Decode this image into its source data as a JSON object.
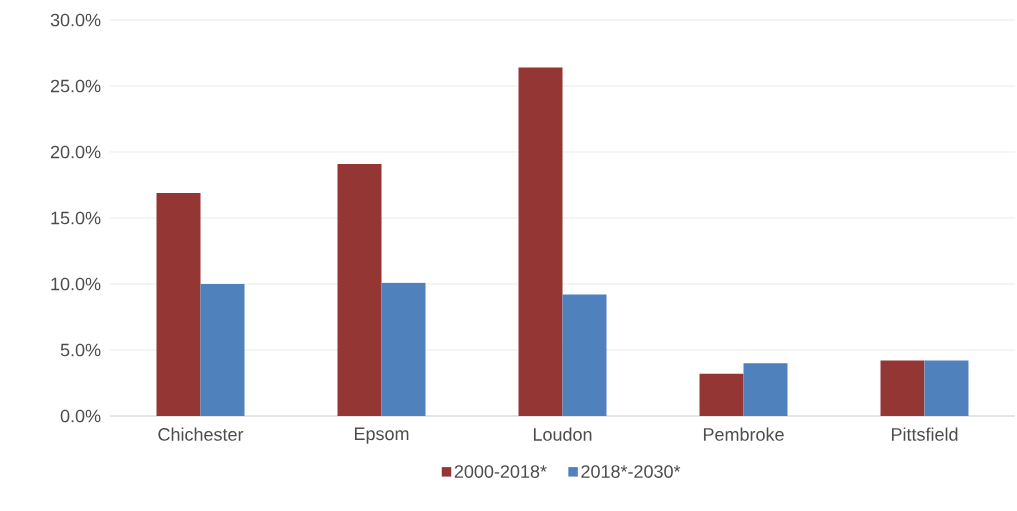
{
  "chart_data": {
    "type": "bar",
    "categories": [
      "Chichester",
      "Epsom",
      "Loudon",
      "Pembroke",
      "Pittsfield"
    ],
    "series": [
      {
        "name": "2000-2018*",
        "color": "#943634",
        "values": [
          16.9,
          19.1,
          26.4,
          3.2,
          4.2
        ]
      },
      {
        "name": "2018*-2030*",
        "color": "#4f81bd",
        "values": [
          10.0,
          10.1,
          9.2,
          4.0,
          4.2
        ]
      }
    ],
    "ylim": [
      0,
      30
    ],
    "yticks": [
      {
        "value": 0,
        "label": "0.0%"
      },
      {
        "value": 5,
        "label": "5.0%"
      },
      {
        "value": 10,
        "label": "10.0%"
      },
      {
        "value": 15,
        "label": "15.0%"
      },
      {
        "value": 20,
        "label": "20.0%"
      },
      {
        "value": 25,
        "label": "25.0%"
      },
      {
        "value": 30,
        "label": "30.0%"
      }
    ],
    "grid": "y",
    "legend": "bottom"
  }
}
